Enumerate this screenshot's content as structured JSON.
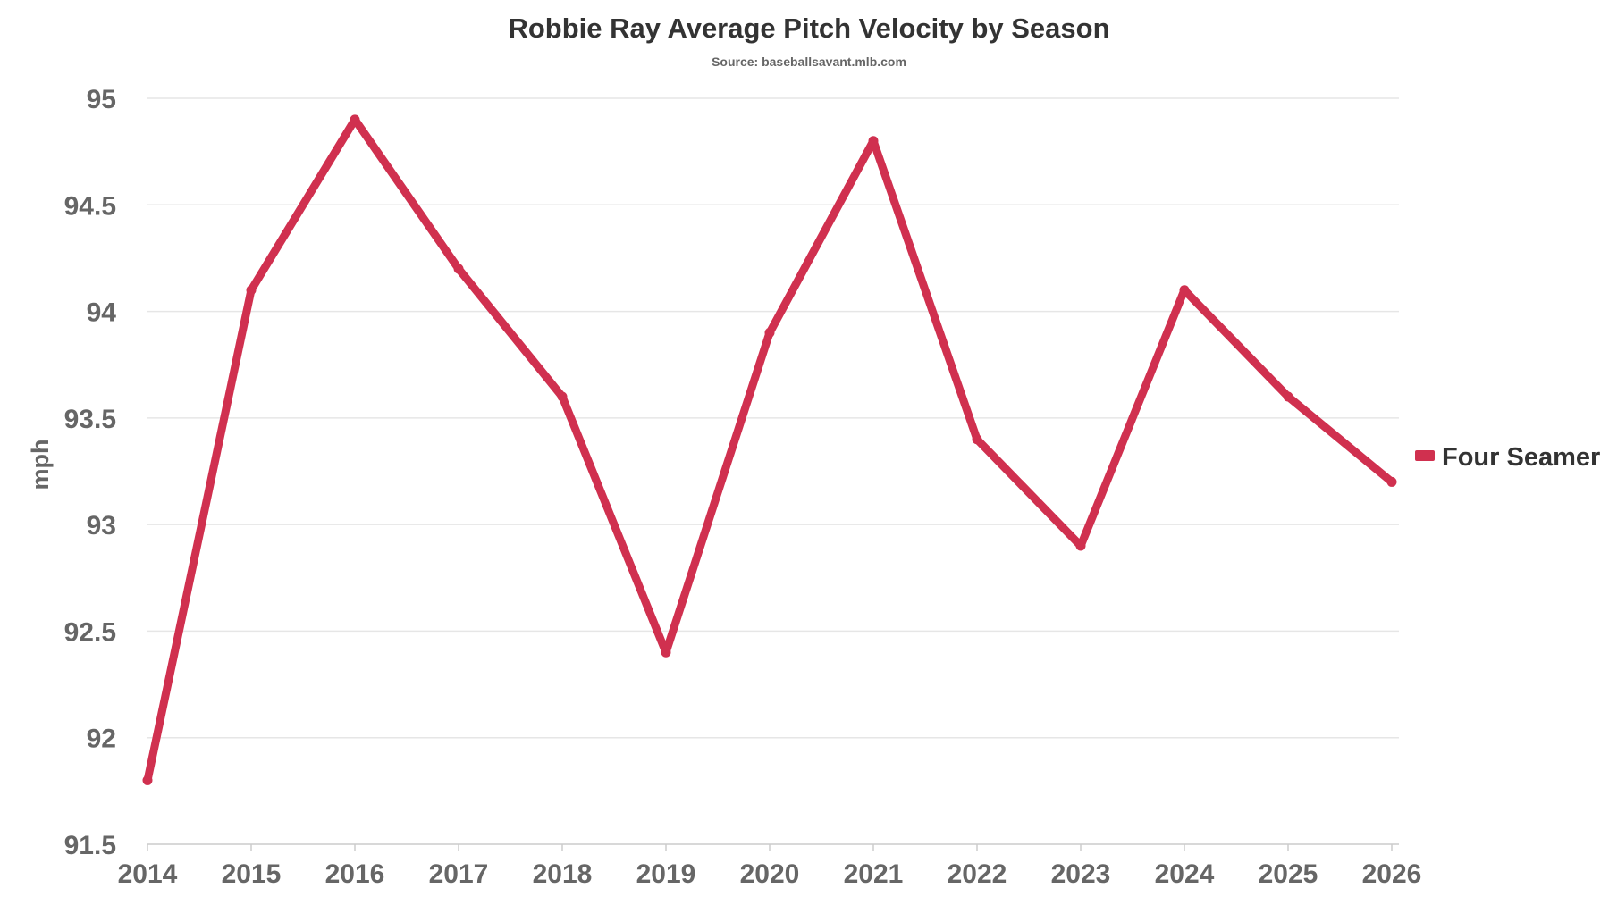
{
  "chart_data": {
    "type": "line",
    "title": "Robbie Ray Average Pitch Velocity by Season",
    "subtitle": "Source: baseballsavant.mlb.com",
    "xlabel": "",
    "ylabel": "mph",
    "x": [
      "2014",
      "2015",
      "2016",
      "2017",
      "2018",
      "2019",
      "2020",
      "2021",
      "2022",
      "2023",
      "2024",
      "2025",
      "2026"
    ],
    "series": [
      {
        "name": "Four Seamer",
        "color": "#d0304f",
        "values": [
          91.8,
          94.1,
          94.9,
          94.2,
          93.6,
          92.4,
          93.9,
          94.8,
          93.4,
          92.9,
          94.1,
          93.6,
          93.2
        ]
      }
    ],
    "ylim": [
      91.5,
      95
    ],
    "yticks": [
      "91.5",
      "92",
      "92.5",
      "93",
      "93.5",
      "94",
      "94.5",
      "95"
    ],
    "grid": true,
    "legend_position": "right"
  }
}
